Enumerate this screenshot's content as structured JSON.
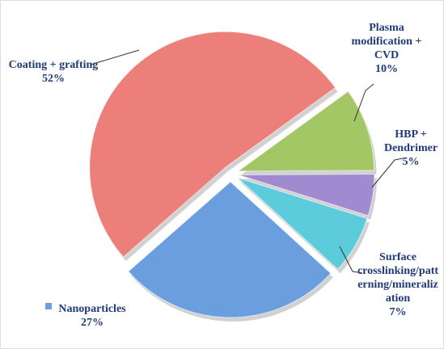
{
  "chart_data": {
    "type": "pie",
    "categories": [
      "Coating + grafting",
      "Plasma modification + CVD",
      "HBP + Dendrimer",
      "Surface crosslinking/patterning/mineralization",
      "Nanoparticles"
    ],
    "values": [
      52,
      10,
      5,
      7,
      27
    ],
    "value_labels": [
      "52%",
      "10%",
      "5%",
      "7%",
      "27%"
    ],
    "colors": [
      "#ec7f79",
      "#a3c765",
      "#a08ad0",
      "#5ccbdc",
      "#6b9ede"
    ]
  }
}
